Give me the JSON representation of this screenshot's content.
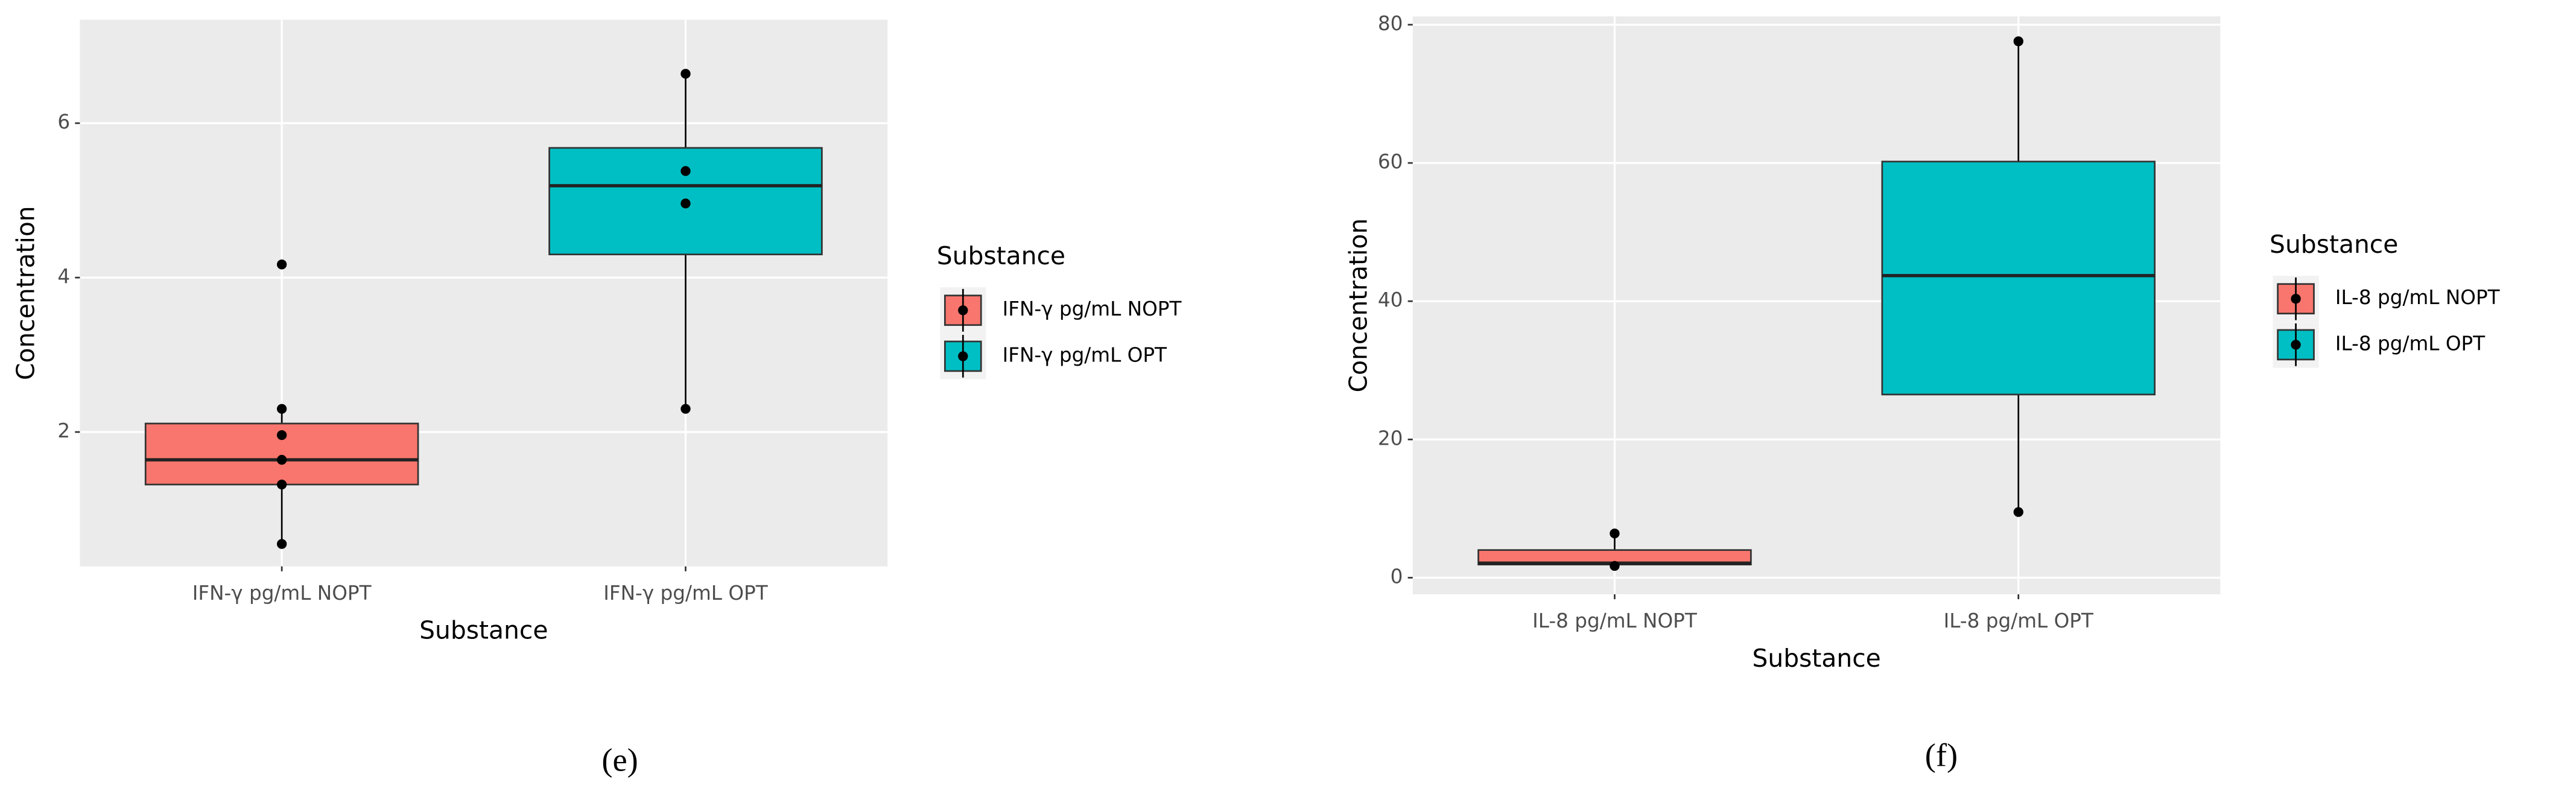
{
  "chart_data": [
    {
      "type": "box",
      "caption": "(e)",
      "x_label": "Substance",
      "y_label": "Concentration",
      "legend_title": "Substance",
      "categories": [
        "IFN-γ pg/mL NOPT",
        "IFN-γ pg/mL OPT"
      ],
      "boxes": [
        {
          "color": "#F8766D",
          "whislo": 0.55,
          "q1": 1.32,
          "med": 1.64,
          "q3": 2.11,
          "whishi": 2.3,
          "points": [
            4.17,
            2.3,
            1.96,
            1.64,
            1.32,
            0.55
          ]
        },
        {
          "color": "#00BFC4",
          "whislo": 2.3,
          "q1": 4.3,
          "med": 5.19,
          "q3": 5.68,
          "whishi": 6.64,
          "points": [
            6.64,
            5.38,
            4.96,
            2.3
          ]
        }
      ],
      "ylim": [
        0.26,
        7.34
      ],
      "yticks": [
        2,
        4,
        6
      ],
      "grid": true
    },
    {
      "type": "box",
      "caption": "(f)",
      "x_label": "Substance",
      "y_label": "Concentration",
      "legend_title": "Substance",
      "categories": [
        "IL-8 pg/mL NOPT",
        "IL-8 pg/mL OPT"
      ],
      "boxes": [
        {
          "color": "#F8766D",
          "whislo": 1.7,
          "q1": 1.9,
          "med": 2.1,
          "q3": 4.0,
          "whishi": 6.4,
          "points": [
            6.4,
            1.7
          ]
        },
        {
          "color": "#00BFC4",
          "whislo": 9.5,
          "q1": 26.5,
          "med": 43.7,
          "q3": 60.2,
          "whishi": 77.6,
          "points": [
            77.6,
            9.5
          ]
        }
      ],
      "ylim": [
        -2.4,
        81.2
      ],
      "yticks": [
        0,
        20,
        40,
        60,
        80
      ],
      "grid": true
    }
  ]
}
